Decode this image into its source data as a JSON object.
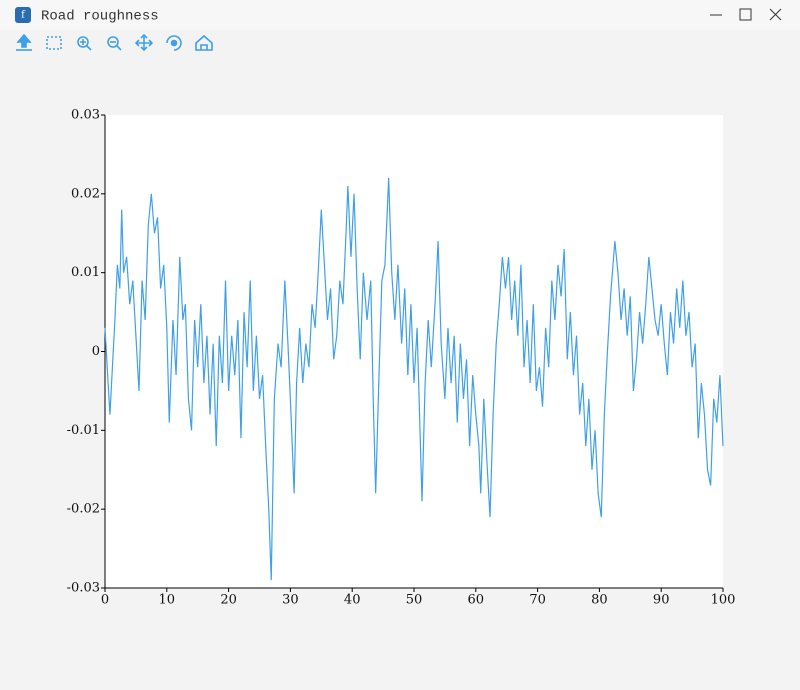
{
  "window": {
    "title": "Road roughness"
  },
  "chart_data": {
    "type": "line",
    "x": [
      0,
      0.5,
      0.8,
      1.2,
      1.6,
      2,
      2.4,
      2.7,
      3,
      3.5,
      4,
      4.5,
      5,
      5.5,
      6,
      6.5,
      7,
      7.5,
      8,
      8.5,
      9,
      9.5,
      10,
      10.4,
      11,
      11.5,
      12.1,
      12.6,
      13,
      13.5,
      14,
      14.5,
      15,
      15.5,
      16,
      16.5,
      17,
      17.5,
      18,
      18.5,
      19,
      19.5,
      20,
      20.5,
      21,
      21.5,
      22,
      22.5,
      23,
      23.5,
      24,
      24.5,
      25,
      25.5,
      26,
      26.5,
      26.9,
      27.4,
      28,
      28.5,
      29.1,
      29.6,
      30.1,
      30.6,
      31,
      31.5,
      32,
      32.5,
      33,
      33.5,
      34,
      34.5,
      35,
      35.5,
      36,
      36.5,
      37,
      37.5,
      38,
      38.5,
      39,
      39.3,
      39.8,
      40.3,
      40.8,
      41.3,
      41.8,
      42.4,
      43,
      43.4,
      43.8,
      44.3,
      44.8,
      45.3,
      45.9,
      46.4,
      46.9,
      47.4,
      48,
      48.5,
      49,
      49.5,
      50,
      50.5,
      51.3,
      51.8,
      52.3,
      52.8,
      53.4,
      53.9,
      54.4,
      55,
      55.5,
      56,
      56.5,
      57,
      57.5,
      58,
      58.5,
      59,
      59.5,
      60,
      60.5,
      60.8,
      61.3,
      61.8,
      62.3,
      62.8,
      63.3,
      63.8,
      64.3,
      64.8,
      65.3,
      65.8,
      66.3,
      66.8,
      67.3,
      67.8,
      68.3,
      68.8,
      69.3,
      69.8,
      70.3,
      70.8,
      71.3,
      71.8,
      72.3,
      72.8,
      73.3,
      73.8,
      74.3,
      74.8,
      75.3,
      75.8,
      76.3,
      76.8,
      77.3,
      77.8,
      78.3,
      78.8,
      79.3,
      79.8,
      80.3,
      80.8,
      81.3,
      81.8,
      82.5,
      83,
      83.5,
      84,
      84.5,
      85,
      85.5,
      86,
      86.5,
      87,
      87.5,
      88,
      88.5,
      89,
      89.5,
      90,
      90.5,
      91,
      91.5,
      92,
      92.5,
      93,
      93.5,
      94,
      94.5,
      95,
      95.5,
      96,
      96.5,
      97,
      97.5,
      98,
      98.5,
      99,
      99.5,
      100
    ],
    "series": [
      {
        "color": "#3fa0e8",
        "values": [
          0.003,
          -0.004,
          -0.008,
          -0.002,
          0.004,
          0.011,
          0.008,
          0.018,
          0.01,
          0.012,
          0.006,
          0.009,
          0.002,
          -0.005,
          0.009,
          0.004,
          0.016,
          0.02,
          0.015,
          0.017,
          0.008,
          0.011,
          0.003,
          -0.009,
          0.004,
          -0.003,
          0.012,
          0.004,
          0.006,
          -0.006,
          -0.01,
          0.004,
          -0.002,
          0.006,
          -0.004,
          0.002,
          -0.008,
          0.001,
          -0.012,
          0.002,
          -0.004,
          0.009,
          -0.005,
          0.002,
          -0.003,
          0.004,
          -0.011,
          0.005,
          -0.002,
          0.009,
          -0.005,
          0.002,
          -0.006,
          -0.003,
          -0.012,
          -0.02,
          -0.029,
          -0.006,
          0.001,
          -0.002,
          0.009,
          0.001,
          -0.008,
          -0.018,
          -0.004,
          0.003,
          -0.004,
          0.001,
          -0.002,
          0.006,
          0.003,
          0.01,
          0.018,
          0.011,
          0.004,
          0.008,
          -0.001,
          0.002,
          0.009,
          0.006,
          0.015,
          0.021,
          0.012,
          0.02,
          0.008,
          -0.001,
          0.01,
          0.004,
          0.009,
          -0.006,
          -0.018,
          -0.004,
          0.009,
          0.011,
          0.022,
          0.01,
          0.004,
          0.011,
          0.001,
          0.008,
          -0.003,
          0.006,
          -0.004,
          0.003,
          -0.019,
          -0.004,
          0.004,
          -0.002,
          0.006,
          0.014,
          0.001,
          -0.006,
          0.003,
          -0.004,
          0.002,
          -0.009,
          0.001,
          -0.006,
          -0.001,
          -0.012,
          -0.003,
          -0.008,
          -0.012,
          -0.018,
          -0.006,
          -0.014,
          -0.021,
          -0.008,
          0.001,
          0.006,
          0.012,
          0.008,
          0.012,
          0.004,
          0.009,
          0.002,
          0.011,
          -0.002,
          0.004,
          -0.004,
          0.006,
          -0.005,
          -0.002,
          -0.007,
          0.003,
          -0.002,
          0.009,
          0.004,
          0.011,
          0.007,
          0.013,
          -0.001,
          0.005,
          -0.003,
          0.002,
          -0.008,
          -0.004,
          -0.012,
          -0.006,
          -0.015,
          -0.01,
          -0.018,
          -0.021,
          -0.008,
          0,
          0.007,
          0.014,
          0.01,
          0.004,
          0.008,
          0.002,
          0.007,
          -0.005,
          -0.001,
          0.005,
          0.001,
          0.006,
          0.012,
          0.008,
          0.004,
          0.002,
          0.006,
          0.001,
          -0.003,
          0.005,
          0.001,
          0.008,
          0.003,
          0.009,
          0.002,
          0.005,
          -0.002,
          0.001,
          -0.011,
          -0.004,
          -0.008,
          -0.015,
          -0.017,
          -0.006,
          -0.009,
          -0.003,
          -0.012
        ]
      }
    ],
    "xlim": [
      0,
      100
    ],
    "xticks": [
      0,
      10,
      20,
      30,
      40,
      50,
      60,
      70,
      80,
      90,
      100
    ],
    "ylim": [
      -0.03,
      0.03
    ],
    "yticks": [
      0.03,
      0.02,
      0.01,
      0,
      -0.01,
      -0.02,
      -0.03
    ],
    "grid": false
  }
}
